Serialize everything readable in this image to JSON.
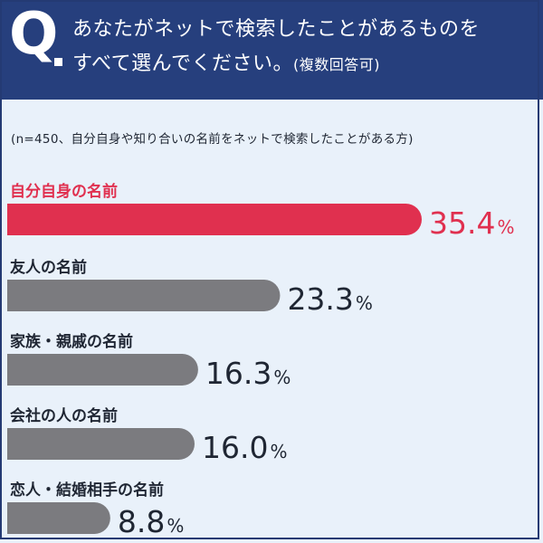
{
  "question": {
    "marker": "Q",
    "line1": "あなたがネットで検索したことがあるものを",
    "line2": "すべて選んでください。",
    "note": "(複数回答可)"
  },
  "sample_note": "(n=450、自分自身や知り合いの名前をネットで検索したことがある方)",
  "colors": {
    "header": "#263f7d",
    "background": "#e9f1fa",
    "highlight": "#e0304f",
    "bar": "#7b7b7f",
    "text": "#1f2633"
  },
  "chart_data": {
    "type": "bar",
    "orientation": "horizontal",
    "unit": "%",
    "categories": [
      "自分自身の名前",
      "友人の名前",
      "家族・親戚の名前",
      "会社の人の名前",
      "恋人・結婚相手の名前"
    ],
    "values": [
      35.4,
      23.3,
      16.3,
      16.0,
      8.8
    ],
    "value_labels": [
      "35.4",
      "23.3",
      "16.3",
      "16.0",
      "8.8"
    ],
    "highlight_index": 0
  }
}
